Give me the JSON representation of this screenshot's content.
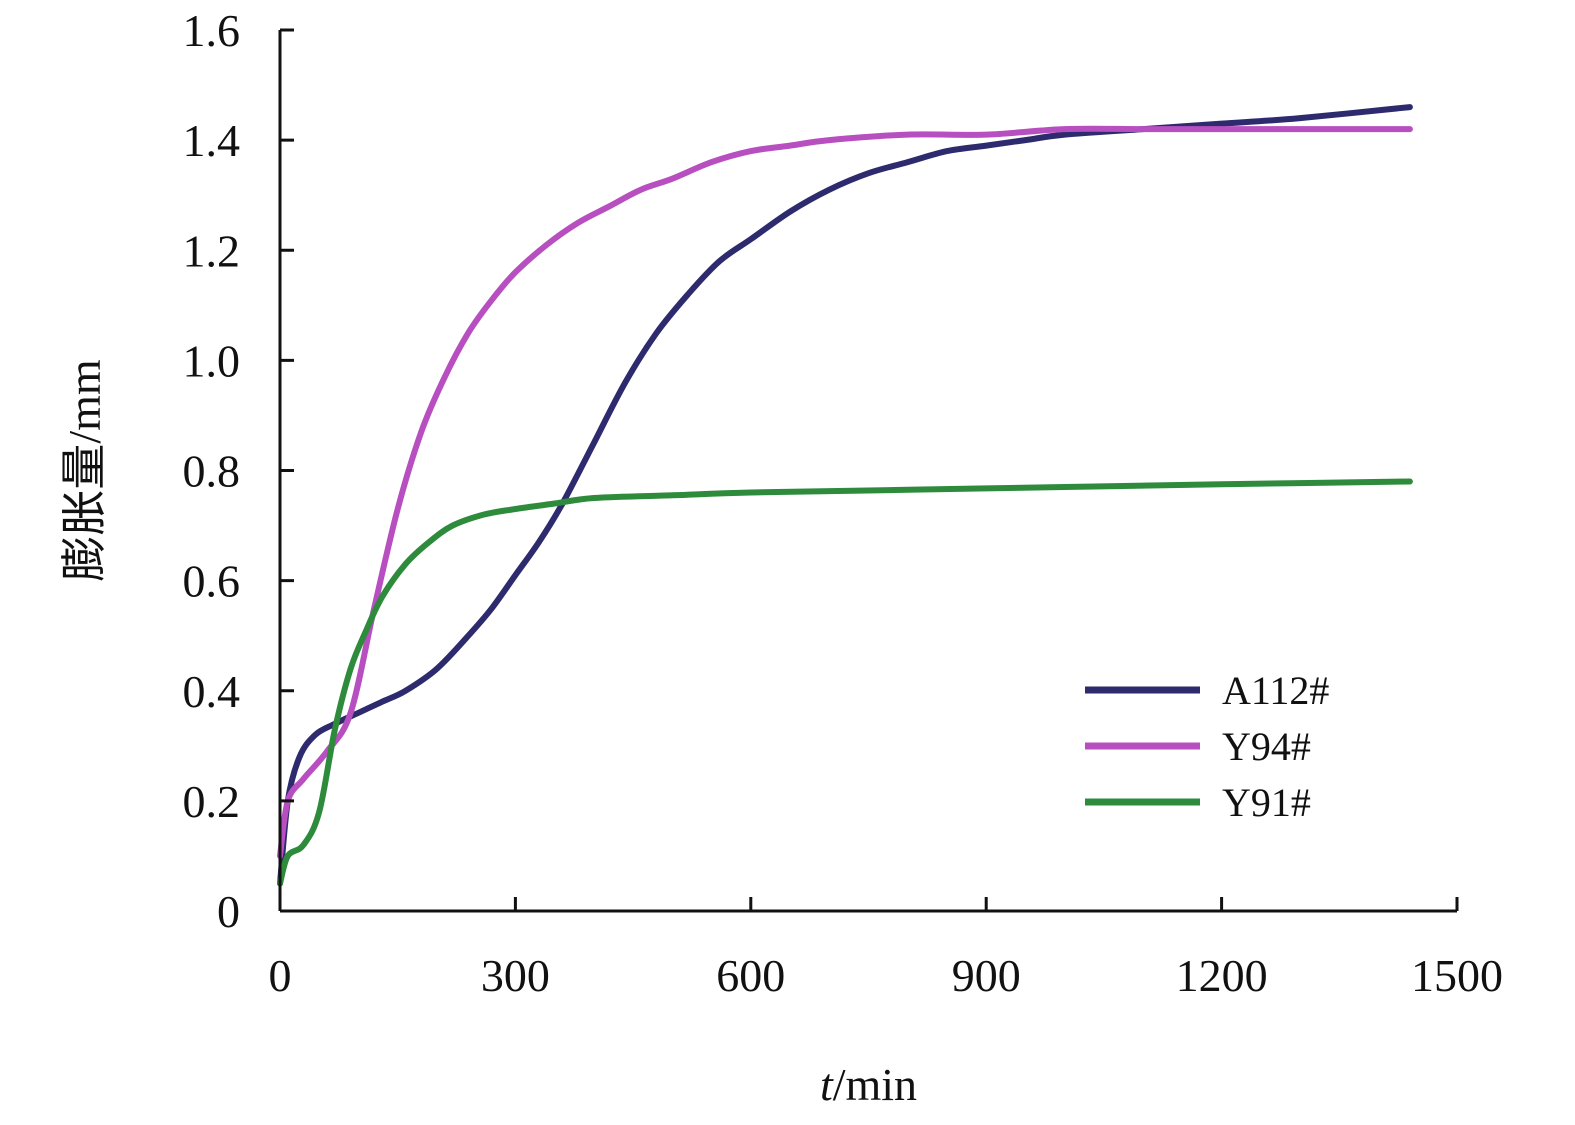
{
  "chart_data": {
    "type": "line",
    "title": "",
    "xlabel": "t/min",
    "xlabel_italic_part": "t",
    "xlabel_rest": "/min",
    "ylabel": "膨胀量/mm",
    "xlim": [
      0,
      1500
    ],
    "ylim": [
      0,
      1.6
    ],
    "xticks": [
      0,
      300,
      600,
      900,
      1200,
      1500
    ],
    "yticks": [
      0,
      0.2,
      0.4,
      0.6,
      0.8,
      1.0,
      1.2,
      1.4,
      1.6
    ],
    "ytick_labels": [
      "0",
      "0.2",
      "0.4",
      "0.6",
      "0.8",
      "1.0",
      "1.2",
      "1.4",
      "1.6"
    ],
    "xtick_labels": [
      "0",
      "300",
      "600",
      "900",
      "1200",
      "1500"
    ],
    "grid": false,
    "legend_position": "lower-right",
    "series": [
      {
        "name": "A112#",
        "color": "#2e2a6e",
        "x": [
          0,
          10,
          25,
          45,
          70,
          100,
          130,
          160,
          200,
          240,
          270,
          300,
          330,
          360,
          400,
          440,
          480,
          520,
          560,
          600,
          650,
          700,
          750,
          800,
          850,
          900,
          950,
          1000,
          1100,
          1200,
          1300,
          1440
        ],
        "y": [
          0.05,
          0.2,
          0.28,
          0.32,
          0.34,
          0.36,
          0.38,
          0.4,
          0.44,
          0.5,
          0.55,
          0.61,
          0.67,
          0.74,
          0.85,
          0.96,
          1.05,
          1.12,
          1.18,
          1.22,
          1.27,
          1.31,
          1.34,
          1.36,
          1.38,
          1.39,
          1.4,
          1.41,
          1.42,
          1.43,
          1.44,
          1.46
        ]
      },
      {
        "name": "Y94#",
        "color": "#b84fc0",
        "x": [
          0,
          10,
          30,
          60,
          90,
          120,
          150,
          180,
          210,
          240,
          270,
          300,
          340,
          380,
          420,
          460,
          500,
          550,
          600,
          650,
          700,
          800,
          900,
          1000,
          1100,
          1200,
          1300,
          1440
        ],
        "y": [
          0.1,
          0.2,
          0.24,
          0.29,
          0.36,
          0.55,
          0.73,
          0.87,
          0.97,
          1.05,
          1.11,
          1.16,
          1.21,
          1.25,
          1.28,
          1.31,
          1.33,
          1.36,
          1.38,
          1.39,
          1.4,
          1.41,
          1.41,
          1.42,
          1.42,
          1.42,
          1.42,
          1.42
        ]
      },
      {
        "name": "Y91#",
        "color": "#2e8b3c",
        "x": [
          0,
          10,
          30,
          50,
          70,
          90,
          110,
          130,
          160,
          190,
          220,
          260,
          300,
          350,
          400,
          500,
          600,
          800,
          1000,
          1200,
          1440
        ],
        "y": [
          0.05,
          0.1,
          0.12,
          0.18,
          0.33,
          0.44,
          0.51,
          0.57,
          0.63,
          0.67,
          0.7,
          0.72,
          0.73,
          0.74,
          0.75,
          0.755,
          0.76,
          0.765,
          0.77,
          0.775,
          0.78
        ]
      }
    ]
  }
}
